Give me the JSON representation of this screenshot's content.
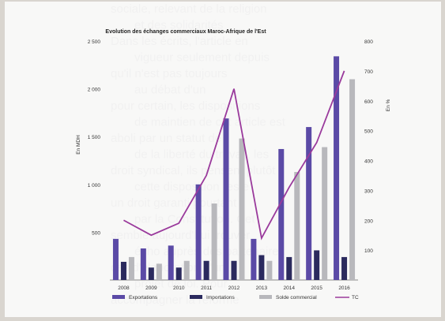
{
  "page": {
    "background_text_lines": [
      "sociale, relevant de la religion",
      "et des solidarités",
      "Dans les écrits, l'article en",
      "vigueur seulement depuis",
      "qu'il n'est pas toujours",
      "au débat d'un",
      "pour certain, les dispositions",
      "de maintien de cet article est",
      "aboli par un statut de",
      "de la liberté du travail, les",
      "droit syndical, ils pensent plutôt",
      "cette disposition reste",
      "un droit garanti pourtant",
      "par la Constitution. Cet",
      "semble aujourd'hui trouver",
      "écho auprès des partenaires",
      "ces d'élaboration d'un",
      "projet de loi. Pour",
      "accompagner la réforme"
    ]
  },
  "chart_data": {
    "type": "bar",
    "title": "Evolution des échanges commerciaux Maroc-Afrique de l'Est",
    "categories": [
      "2008",
      "2009",
      "2010",
      "2011",
      "2012",
      "2013",
      "2014",
      "2015",
      "2016"
    ],
    "series": [
      {
        "name": "Exportations",
        "type": "bar",
        "axis": "left",
        "color": "#5b4aa6",
        "values": [
          430,
          330,
          360,
          1000,
          1690,
          430,
          1370,
          1600,
          2340
        ]
      },
      {
        "name": "Importations",
        "type": "bar",
        "axis": "left",
        "color": "#2b2a5e",
        "values": [
          190,
          130,
          130,
          200,
          200,
          260,
          240,
          310,
          240
        ]
      },
      {
        "name": "Solde commercial",
        "type": "bar",
        "axis": "left",
        "color": "#b8b8bc",
        "values": [
          240,
          170,
          200,
          800,
          1480,
          200,
          1130,
          1390,
          2100
        ]
      },
      {
        "name": "TC",
        "type": "line",
        "axis": "right",
        "color": "#9a3a9c",
        "values": [
          200,
          150,
          190,
          350,
          640,
          140,
          310,
          460,
          700
        ]
      }
    ],
    "ylabel": "En MDH",
    "ylabel_right": "En %",
    "ylim": [
      0,
      2500
    ],
    "ylim_right": [
      0,
      800
    ],
    "yticks": [
      500,
      1000,
      1500,
      2000,
      2500
    ],
    "ytick_labels": [
      "500",
      "1 000",
      "1 500",
      "2 000",
      "2 500"
    ],
    "yticks_right": [
      100,
      200,
      300,
      400,
      500,
      600,
      700,
      800
    ],
    "grid": false,
    "legend_position": "bottom"
  }
}
